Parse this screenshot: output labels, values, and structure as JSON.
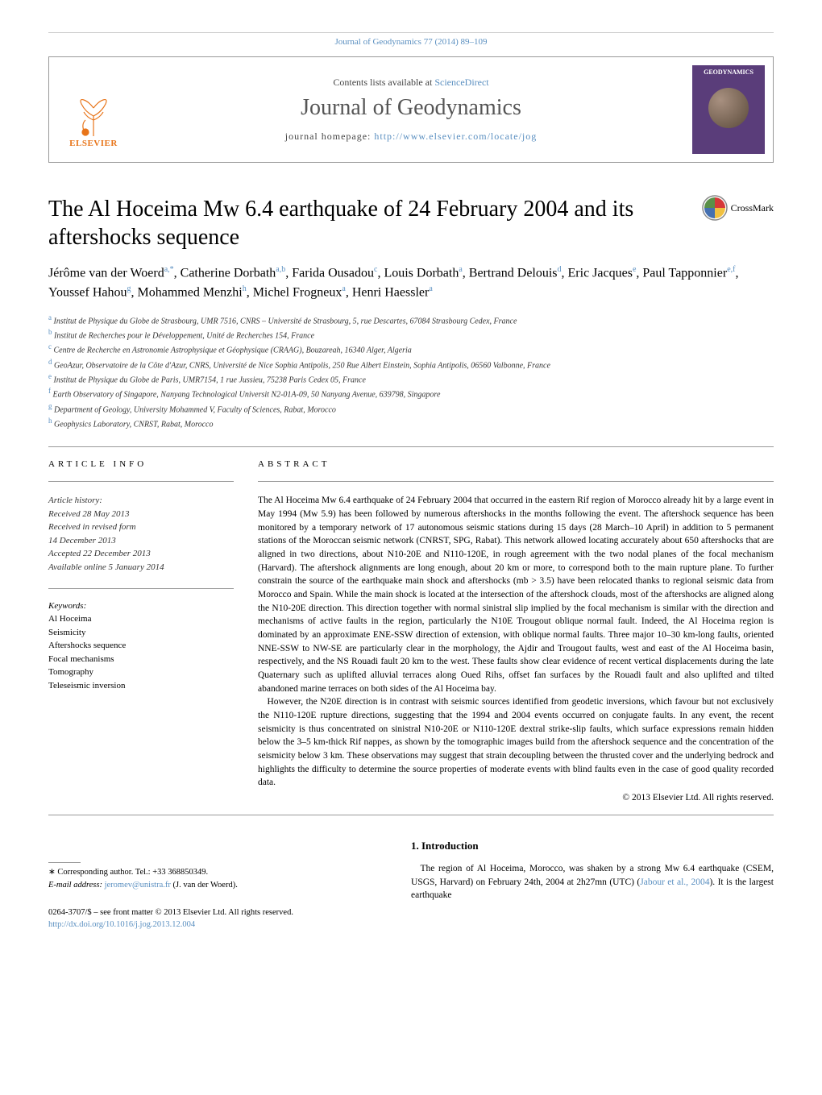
{
  "header": {
    "journal_ref": "Journal of Geodynamics 77 (2014) 89–109",
    "sciencedirect_prefix": "Contents lists available at ",
    "sciencedirect_link": "ScienceDirect",
    "journal_title": "Journal of Geodynamics",
    "homepage_prefix": "journal homepage: ",
    "homepage_link": "http://www.elsevier.com/locate/jog",
    "elsevier_text": "ELSEVIER",
    "cover_text": "GEODYNAMICS"
  },
  "title": "The Al Hoceima Mw 6.4 earthquake of 24 February 2004 and its aftershocks sequence",
  "crossmark": "CrossMark",
  "authors_html": "Jérôme van der Woerd<sup>a,*</sup>, Catherine Dorbath<sup>a,b</sup>, Farida Ousadou<sup>c</sup>, Louis Dorbath<sup>a</sup>, Bertrand Delouis<sup>d</sup>, Eric Jacques<sup>e</sup>, Paul Tapponnier<sup>e,f</sup>, Youssef Hahou<sup>g</sup>, Mohammed Menzhi<sup>h</sup>, Michel Frogneux<sup>a</sup>, Henri Haessler<sup>a</sup>",
  "affiliations": [
    {
      "sup": "a",
      "text": "Institut de Physique du Globe de Strasbourg, UMR 7516, CNRS – Université de Strasbourg, 5, rue Descartes, 67084 Strasbourg Cedex, France"
    },
    {
      "sup": "b",
      "text": "Institut de Recherches pour le Développement, Unité de Recherches 154, France"
    },
    {
      "sup": "c",
      "text": "Centre de Recherche en Astronomie Astrophysique et Géophysique (CRAAG), Bouzareah, 16340 Alger, Algeria"
    },
    {
      "sup": "d",
      "text": "GeoAzur, Observatoire de la Côte d'Azur, CNRS, Université de Nice Sophia Antipolis, 250 Rue Albert Einstein, Sophia Antipolis, 06560 Valbonne, France"
    },
    {
      "sup": "e",
      "text": "Institut de Physique du Globe de Paris, UMR7154, 1 rue Jussieu, 75238 Paris Cedex 05, France"
    },
    {
      "sup": "f",
      "text": "Earth Observatory of Singapore, Nanyang Technological Universit N2-01A-09, 50 Nanyang Avenue, 639798, Singapore"
    },
    {
      "sup": "g",
      "text": "Department of Geology, University Mohammed V, Faculty of Sciences, Rabat, Morocco"
    },
    {
      "sup": "h",
      "text": "Geophysics Laboratory, CNRST, Rabat, Morocco"
    }
  ],
  "article_info": {
    "heading": "ARTICLE INFO",
    "history_label": "Article history:",
    "received": "Received 28 May 2013",
    "revised": "Received in revised form",
    "revised_date": "14 December 2013",
    "accepted": "Accepted 22 December 2013",
    "online": "Available online 5 January 2014",
    "keywords_label": "Keywords:",
    "keywords": [
      "Al Hoceima",
      "Seismicity",
      "Aftershocks sequence",
      "Focal mechanisms",
      "Tomography",
      "Teleseismic inversion"
    ]
  },
  "abstract": {
    "heading": "ABSTRACT",
    "para1": "The Al Hoceima Mw 6.4 earthquake of 24 February 2004 that occurred in the eastern Rif region of Morocco already hit by a large event in May 1994 (Mw 5.9) has been followed by numerous aftershocks in the months following the event. The aftershock sequence has been monitored by a temporary network of 17 autonomous seismic stations during 15 days (28 March–10 April) in addition to 5 permanent stations of the Moroccan seismic network (CNRST, SPG, Rabat). This network allowed locating accurately about 650 aftershocks that are aligned in two directions, about N10-20E and N110-120E, in rough agreement with the two nodal planes of the focal mechanism (Harvard). The aftershock alignments are long enough, about 20 km or more, to correspond both to the main rupture plane. To further constrain the source of the earthquake main shock and aftershocks (mb > 3.5) have been relocated thanks to regional seismic data from Morocco and Spain. While the main shock is located at the intersection of the aftershock clouds, most of the aftershocks are aligned along the N10-20E direction. This direction together with normal sinistral slip implied by the focal mechanism is similar with the direction and mechanisms of active faults in the region, particularly the N10E Trougout oblique normal fault. Indeed, the Al Hoceima region is dominated by an approximate ENE-SSW direction of extension, with oblique normal faults. Three major 10–30 km-long faults, oriented NNE-SSW to NW-SE are particularly clear in the morphology, the Ajdir and Trougout faults, west and east of the Al Hoceima basin, respectively, and the NS Rouadi fault 20 km to the west. These faults show clear evidence of recent vertical displacements during the late Quaternary such as uplifted alluvial terraces along Oued Rihs, offset fan surfaces by the Rouadi fault and also uplifted and tilted abandoned marine terraces on both sides of the Al Hoceima bay.",
    "para2": "However, the N20E direction is in contrast with seismic sources identified from geodetic inversions, which favour but not exclusively the N110-120E rupture directions, suggesting that the 1994 and 2004 events occurred on conjugate faults. In any event, the recent seismicity is thus concentrated on sinistral N10-20E or N110-120E dextral strike-slip faults, which surface expressions remain hidden below the 3–5 km-thick Rif nappes, as shown by the tomographic images build from the aftershock sequence and the concentration of the seismicity below 3 km. These observations may suggest that strain decoupling between the thrusted cover and the underlying bedrock and highlights the difficulty to determine the source properties of moderate events with blind faults even in the case of good quality recorded data.",
    "copyright": "© 2013 Elsevier Ltd. All rights reserved."
  },
  "intro": {
    "heading": "1. Introduction",
    "text_pre": "The region of Al Hoceima, Morocco, was shaken by a strong Mw 6.4 earthquake (CSEM, USGS, Harvard) on February 24th, 2004 at 2h27mn (UTC) (",
    "link": "Jabour et al., 2004",
    "text_post": "). It is the largest earthquake"
  },
  "corresponding": {
    "label": "∗ Corresponding author. Tel.: +33 368850349.",
    "email_label": "E-mail address: ",
    "email": "jeromev@unistra.fr",
    "email_suffix": " (J. van der Woerd)."
  },
  "footer": {
    "line1": "0264-3707/$ – see front matter © 2013 Elsevier Ltd. All rights reserved.",
    "doi": "http://dx.doi.org/10.1016/j.jog.2013.12.004"
  },
  "colors": {
    "link": "#5a8fc0",
    "elsevier_orange": "#e8751a",
    "cover_purple": "#5a3d7a",
    "crossmark_red": "#d63838",
    "crossmark_yellow": "#f0c040",
    "crossmark_blue": "#4570b0",
    "crossmark_green": "#5a9048"
  }
}
